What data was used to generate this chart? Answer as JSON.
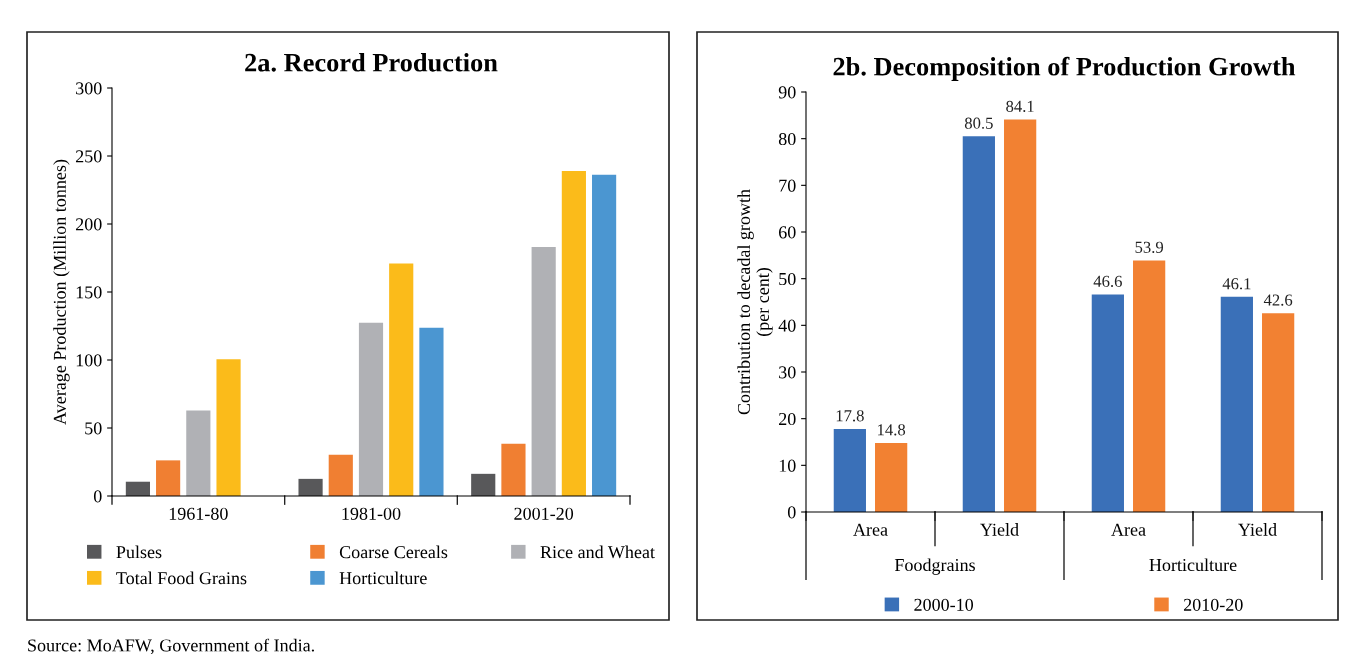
{
  "chart_data": [
    {
      "type": "bar",
      "title": "2a. Record Production",
      "ylabel": "Average Production (Million tonnes)",
      "categories": [
        "1961-80",
        "1981-00",
        "2001-20"
      ],
      "series": [
        {
          "name": "Pulses",
          "color": "#58585a",
          "values": [
            10.5,
            12.6,
            16.3
          ]
        },
        {
          "name": "Coarse Cereals",
          "color": "#f07f32",
          "values": [
            26.2,
            30.4,
            38.5
          ]
        },
        {
          "name": "Rice and Wheat",
          "color": "#b0b1b5",
          "values": [
            62.9,
            127.3,
            183
          ]
        },
        {
          "name": "Total Food Grains",
          "color": "#fbbb1a",
          "values": [
            100.5,
            170.9,
            238.9
          ]
        },
        {
          "name": "Horticulture",
          "color": "#4b96d1",
          "values": [
            null,
            123.7,
            236.2
          ]
        }
      ],
      "ylim": [
        0,
        300
      ],
      "yticks": [
        0,
        50,
        100,
        150,
        200,
        250,
        300
      ],
      "legend": "bottom",
      "annotations": [
        "Source: MoAFW, Government of India."
      ]
    },
    {
      "type": "bar",
      "title": "2b. Decomposition of Production Growth",
      "ylabel": "Contribution to decadal growth\n(per cent)",
      "categories": [
        "Area",
        "Yield",
        "Area",
        "Yield"
      ],
      "series": [
        {
          "name": "2000-10",
          "color": "#3a70b8",
          "values": [
            17.8,
            80.5,
            46.6,
            46.1
          ]
        },
        {
          "name": "2010-20",
          "color": "#f28132",
          "values": [
            14.8,
            84.1,
            53.9,
            42.6
          ]
        }
      ],
      "ylim": [
        0,
        90
      ],
      "yticks": [
        0,
        10,
        20,
        30,
        40,
        50,
        60,
        70,
        80,
        90
      ],
      "data_labels": true,
      "legend": "bottom",
      "annotations": [
        "Foodgrains",
        "Horticulture"
      ]
    }
  ]
}
